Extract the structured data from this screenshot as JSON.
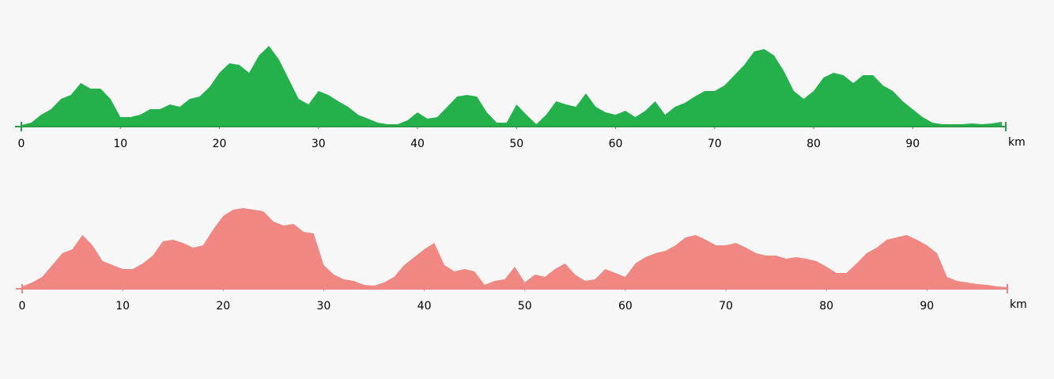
{
  "chart_data": [
    {
      "type": "area",
      "color": "#24b14c",
      "axis_color": "#2e9a48",
      "x_label": "km",
      "xlim": [
        0,
        99.4
      ],
      "ylim": [
        0,
        110
      ],
      "xticks": [
        0,
        10,
        20,
        30,
        40,
        50,
        60,
        70,
        80,
        90
      ],
      "x": [
        0,
        1,
        2,
        3,
        4,
        5,
        6,
        7,
        8,
        9,
        10,
        11,
        12,
        13,
        14,
        15,
        16,
        17,
        18,
        19,
        20,
        21,
        22,
        23,
        24,
        25,
        26,
        27,
        28,
        29,
        30,
        31,
        32,
        33,
        34,
        35,
        36,
        37,
        38,
        39,
        40,
        41,
        42,
        43,
        44,
        45,
        46,
        47,
        48,
        49,
        50,
        51,
        52,
        53,
        54,
        55,
        56,
        57,
        58,
        59,
        60,
        61,
        62,
        63,
        64,
        65,
        66,
        67,
        68,
        69,
        70,
        71,
        72,
        73,
        74,
        75,
        76,
        77,
        78,
        79,
        80,
        81,
        82,
        83,
        84,
        85,
        86,
        87,
        88,
        89,
        90,
        91,
        92,
        93,
        94,
        95,
        96,
        97,
        98,
        99
      ],
      "values": [
        2,
        5,
        15,
        22,
        35,
        40,
        55,
        48,
        48,
        35,
        12,
        12,
        15,
        22,
        22,
        28,
        25,
        35,
        38,
        50,
        68,
        80,
        78,
        68,
        90,
        102,
        85,
        60,
        35,
        28,
        45,
        40,
        32,
        25,
        15,
        10,
        5,
        3,
        3,
        8,
        18,
        10,
        12,
        25,
        38,
        40,
        38,
        18,
        5,
        5,
        28,
        15,
        3,
        15,
        32,
        28,
        25,
        42,
        25,
        18,
        15,
        20,
        12,
        20,
        32,
        15,
        25,
        30,
        38,
        45,
        45,
        52,
        65,
        78,
        95,
        98,
        90,
        70,
        45,
        35,
        45,
        62,
        68,
        65,
        55,
        65,
        65,
        52,
        45,
        32,
        22,
        12,
        5,
        3,
        3,
        3,
        4,
        3,
        4,
        6
      ]
    },
    {
      "type": "area",
      "color": "#f08782",
      "axis_color": "#ec8580",
      "x_label": "km",
      "xlim": [
        0,
        98
      ],
      "ylim": [
        0,
        110
      ],
      "xticks": [
        0,
        10,
        20,
        30,
        40,
        50,
        60,
        70,
        80,
        90
      ],
      "x": [
        0,
        1,
        2,
        3,
        4,
        5,
        6,
        7,
        8,
        9,
        10,
        11,
        12,
        13,
        14,
        15,
        16,
        17,
        18,
        19,
        20,
        21,
        22,
        23,
        24,
        25,
        26,
        27,
        28,
        29,
        30,
        31,
        32,
        33,
        34,
        35,
        36,
        37,
        38,
        39,
        40,
        41,
        42,
        43,
        44,
        45,
        46,
        47,
        48,
        49,
        50,
        51,
        52,
        53,
        54,
        55,
        56,
        57,
        58,
        59,
        60,
        61,
        62,
        63,
        64,
        65,
        66,
        67,
        68,
        69,
        70,
        71,
        72,
        73,
        74,
        75,
        76,
        77,
        78,
        79,
        80,
        81,
        82,
        83,
        84,
        85,
        86,
        87,
        88,
        89,
        90,
        91,
        92,
        93,
        94,
        95,
        96,
        97,
        98
      ],
      "values": [
        3,
        8,
        15,
        30,
        45,
        50,
        68,
        55,
        35,
        30,
        25,
        25,
        32,
        42,
        60,
        62,
        58,
        52,
        55,
        75,
        92,
        100,
        102,
        100,
        98,
        85,
        80,
        82,
        72,
        70,
        30,
        18,
        12,
        10,
        5,
        4,
        8,
        15,
        30,
        40,
        50,
        58,
        30,
        22,
        25,
        22,
        5,
        10,
        12,
        28,
        8,
        18,
        15,
        25,
        32,
        18,
        10,
        12,
        25,
        20,
        15,
        32,
        40,
        45,
        48,
        55,
        65,
        68,
        62,
        55,
        55,
        58,
        52,
        45,
        42,
        42,
        38,
        40,
        38,
        35,
        28,
        20,
        20,
        32,
        45,
        52,
        62,
        65,
        68,
        62,
        55,
        45,
        15,
        10,
        8,
        6,
        5,
        3,
        2
      ]
    }
  ]
}
